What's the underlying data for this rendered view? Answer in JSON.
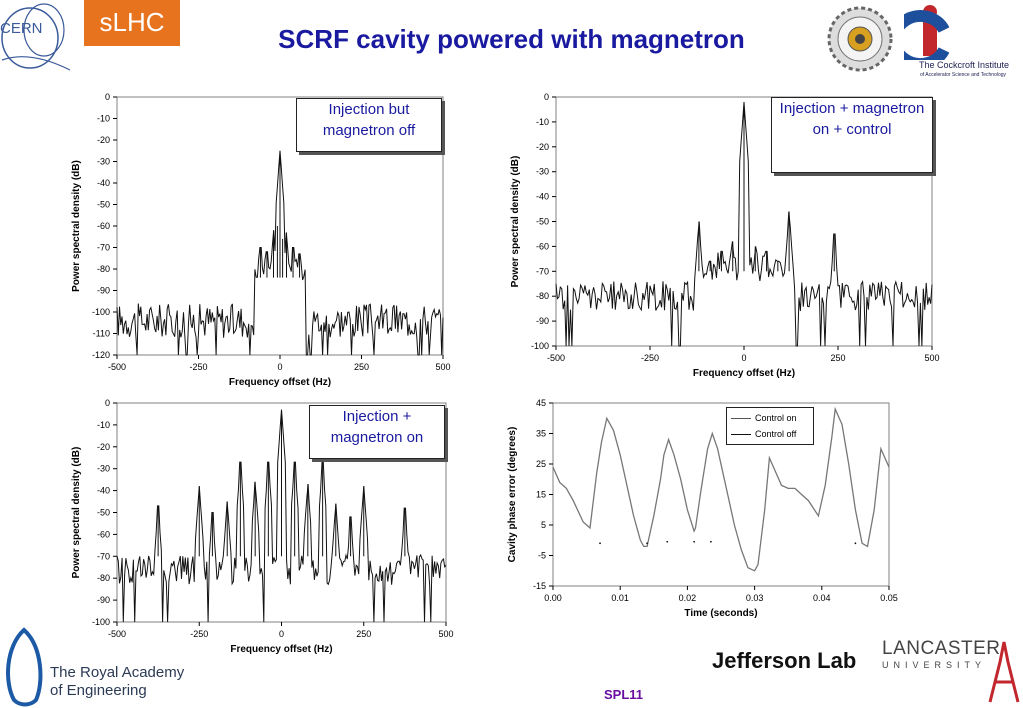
{
  "header": {
    "title": "SCRF cavity powered with magnetron",
    "badge": "sLHC",
    "cern_label": "CERN",
    "cockcroft_label": "The Cockcroft Institute",
    "cockcroft_sub": "of Accelerator Science and Technology"
  },
  "footer": {
    "rae_line1": "The Royal Academy",
    "rae_line2": "of Engineering",
    "jlab": "Jefferson Lab",
    "lancaster": "LANCASTER",
    "lancaster_sub": "UNIVERSITY",
    "slide_label": "SPL11"
  },
  "chart_data": [
    {
      "id": "tl",
      "type": "line",
      "annotation": "Injection but magnetron off",
      "xlabel": "Frequency offset (Hz)",
      "ylabel": "Power spectral density (dB)",
      "xlim": [
        -500,
        500
      ],
      "ylim": [
        -120,
        0
      ],
      "xticks": [
        -500,
        -250,
        0,
        250,
        500
      ],
      "yticks": [
        0,
        -10,
        -20,
        -30,
        -40,
        -50,
        -60,
        -70,
        -80,
        -90,
        -100,
        -110,
        -120
      ],
      "floor": -104,
      "noise": 8,
      "peaks": [
        [
          0,
          -25
        ],
        [
          -20,
          -62
        ],
        [
          20,
          -63
        ],
        [
          -60,
          -70
        ],
        [
          60,
          -73
        ],
        [
          -8,
          -60
        ],
        [
          8,
          -66
        ],
        [
          40,
          -70
        ],
        [
          -40,
          -72
        ]
      ],
      "series": [
        {
          "values_note": ""
        }
      ]
    },
    {
      "id": "tr",
      "type": "line",
      "annotation": "Injection + magnetron on + control",
      "xlabel": "Frequency offset (Hz)",
      "ylabel": "Power spectral density (dB)",
      "xlim": [
        -500,
        500
      ],
      "ylim": [
        -100,
        0
      ],
      "xticks": [
        -500,
        -250,
        0,
        250,
        500
      ],
      "yticks": [
        0,
        -10,
        -20,
        -30,
        -40,
        -50,
        -60,
        -70,
        -80,
        -90,
        -100
      ],
      "floor": -80,
      "noise": 6,
      "peaks": [
        [
          0,
          -2
        ],
        [
          -120,
          -50
        ],
        [
          120,
          -46
        ],
        [
          240,
          -55
        ],
        [
          -30,
          -58
        ],
        [
          30,
          -60
        ],
        [
          -60,
          -62
        ],
        [
          60,
          -62
        ],
        [
          -90,
          -66
        ],
        [
          90,
          -66
        ]
      ],
      "series": [
        {
          "values_note": ""
        }
      ]
    },
    {
      "id": "bl",
      "type": "line",
      "annotation": "Injection + magnetron on",
      "xlabel": "Frequency offset (Hz)",
      "ylabel": "Power spectral density (dB)",
      "xlim": [
        -500,
        500
      ],
      "ylim": [
        -100,
        0
      ],
      "xticks": [
        -500,
        -250,
        0,
        250,
        500
      ],
      "yticks": [
        0,
        -10,
        -20,
        -30,
        -40,
        -50,
        -60,
        -70,
        -80,
        -90,
        -100
      ],
      "floor": -76,
      "noise": 7,
      "peaks": [
        [
          0,
          -3
        ],
        [
          -125,
          -27
        ],
        [
          125,
          -27
        ],
        [
          -40,
          -27
        ],
        [
          40,
          -27
        ],
        [
          -80,
          -36
        ],
        [
          80,
          -37
        ],
        [
          -250,
          -38
        ],
        [
          250,
          -38
        ],
        [
          -375,
          -47
        ],
        [
          375,
          -48
        ],
        [
          -165,
          -45
        ],
        [
          165,
          -46
        ],
        [
          -210,
          -50
        ],
        [
          210,
          -52
        ]
      ],
      "series": [
        {
          "values_note": ""
        }
      ]
    },
    {
      "id": "br",
      "type": "line",
      "xlabel": "Time (seconds)",
      "ylabel": "Cavity phase error (degrees)",
      "xlim": [
        0.0,
        0.05
      ],
      "ylim": [
        -15,
        45
      ],
      "xticks": [
        "0.00",
        "0.01",
        "0.02",
        "0.03",
        "0.04",
        "0.05"
      ],
      "yticks": [
        45,
        35,
        25,
        15,
        5,
        -5,
        -15
      ],
      "series": [
        {
          "name": "Control on",
          "color": "#777777",
          "x": [
            0.0,
            0.001,
            0.002,
            0.003,
            0.0045,
            0.0055,
            0.0065,
            0.0072,
            0.008,
            0.009,
            0.01,
            0.011,
            0.012,
            0.013,
            0.0135,
            0.014,
            0.015,
            0.016,
            0.0165,
            0.0172,
            0.018,
            0.019,
            0.02,
            0.021,
            0.0212,
            0.022,
            0.023,
            0.0237,
            0.0245,
            0.026,
            0.027,
            0.028,
            0.029,
            0.03,
            0.0305,
            0.0315,
            0.0322,
            0.033,
            0.034,
            0.035,
            0.036,
            0.037,
            0.038,
            0.0395,
            0.0405,
            0.0415,
            0.042,
            0.043,
            0.044,
            0.045,
            0.046,
            0.0468,
            0.0478,
            0.0488,
            0.05
          ],
          "y": [
            24,
            19,
            17,
            13,
            6,
            4,
            22,
            32,
            40,
            36,
            28,
            18,
            8,
            0,
            -2,
            -2,
            8,
            20,
            28,
            33,
            28,
            20,
            10,
            3,
            4,
            16,
            30,
            35,
            30,
            15,
            5,
            -3,
            -9,
            -10,
            -8,
            10,
            27,
            23,
            18,
            17,
            17,
            15,
            13,
            8,
            18,
            34,
            43,
            38,
            25,
            10,
            -1,
            -2,
            10,
            30,
            24
          ]
        },
        {
          "name": "Control off",
          "color": "#111111",
          "points": [
            [
              0.007,
              -1
            ],
            [
              0.014,
              -1
            ],
            [
              0.017,
              -0.5
            ],
            [
              0.021,
              -0.5
            ],
            [
              0.0235,
              -0.5
            ],
            [
              0.045,
              -1
            ]
          ]
        }
      ],
      "legend": "top-right"
    }
  ]
}
